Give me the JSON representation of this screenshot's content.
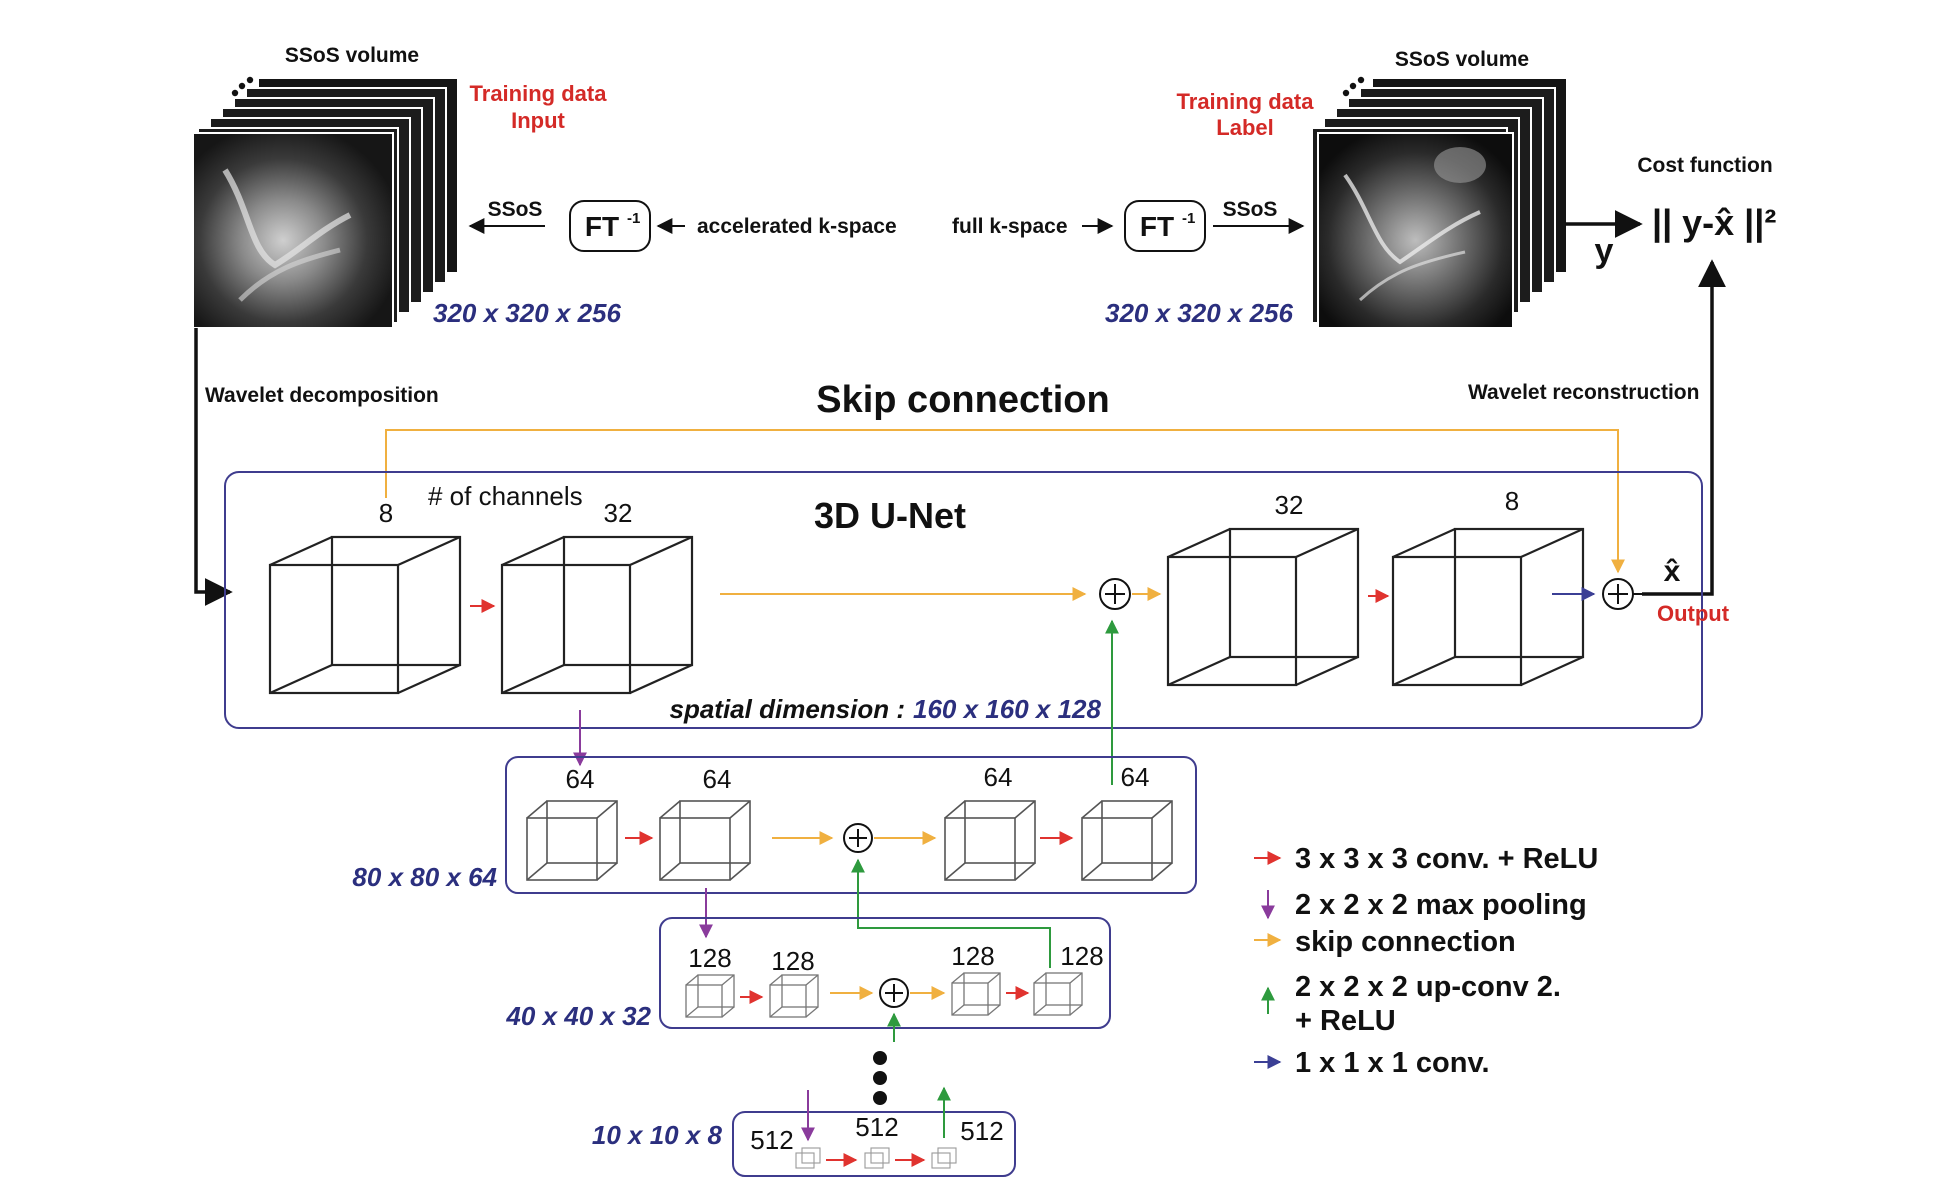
{
  "top": {
    "left": {
      "volume_title": "SSoS volume",
      "role_line1": "Training data",
      "role_line2": "Input",
      "ssos_label": "SSoS",
      "ft_main": "FT",
      "ft_sup": "-1",
      "kspace_label": "accelerated k-space",
      "dims": "320 x 320 x 256"
    },
    "right": {
      "volume_title": "SSoS volume",
      "role_line1": "Training data",
      "role_line2": "Label",
      "ssos_label": "SSoS",
      "ft_main": "FT",
      "ft_sup": "-1",
      "kspace_label": "full k-space",
      "dims": "320 x 320 x 256",
      "y_label": "y"
    },
    "cost": {
      "title": "Cost function",
      "formula": "|| y-x̂ ||²"
    }
  },
  "wavelet_decomposition": "Wavelet decomposition",
  "wavelet_reconstruction": "Wavelet reconstruction",
  "skip_title": "Skip connection",
  "unet": {
    "title": "3D U-Net",
    "channels_label": "# of channels",
    "ch": [
      "8",
      "32",
      "32",
      "8"
    ],
    "xhat": "x̂",
    "output_label": "Output",
    "spatial_label": "spatial dimension :",
    "spatial_dims": "160 x 160 x 128"
  },
  "levels": [
    {
      "dims": "80 x 80 x 64",
      "ch": [
        "64",
        "64",
        "64",
        "64"
      ]
    },
    {
      "dims": "40 x 40 x 32",
      "ch": [
        "128",
        "128",
        "128",
        "128"
      ]
    },
    {
      "dims": "10 x 10 x 8",
      "ch": [
        "512",
        "512",
        "512"
      ]
    }
  ],
  "legend": [
    {
      "color": "#e0332f",
      "kind": "right",
      "label": "3 x 3 x 3 conv. + ReLU"
    },
    {
      "color": "#8a3b9c",
      "kind": "down",
      "label": "2 x 2 x 2 max pooling"
    },
    {
      "color": "#f0b040",
      "kind": "right",
      "label": "skip connection"
    },
    {
      "color": "#2e9a3e",
      "kind": "up",
      "label": "2 x 2 x 2  up-conv 2.",
      "label2": "+ ReLU"
    },
    {
      "color": "#3b3f95",
      "kind": "right",
      "label": "1 x 1 x 1 conv."
    }
  ],
  "colors": {
    "conv": "#e0332f",
    "pool": "#8a3b9c",
    "skip": "#f0b040",
    "upconv": "#2e9a3e",
    "conv1x1": "#3b3f95",
    "dim_text": "#2b2f7e",
    "role_text": "#d42a27",
    "box": "#3f3c8e"
  }
}
